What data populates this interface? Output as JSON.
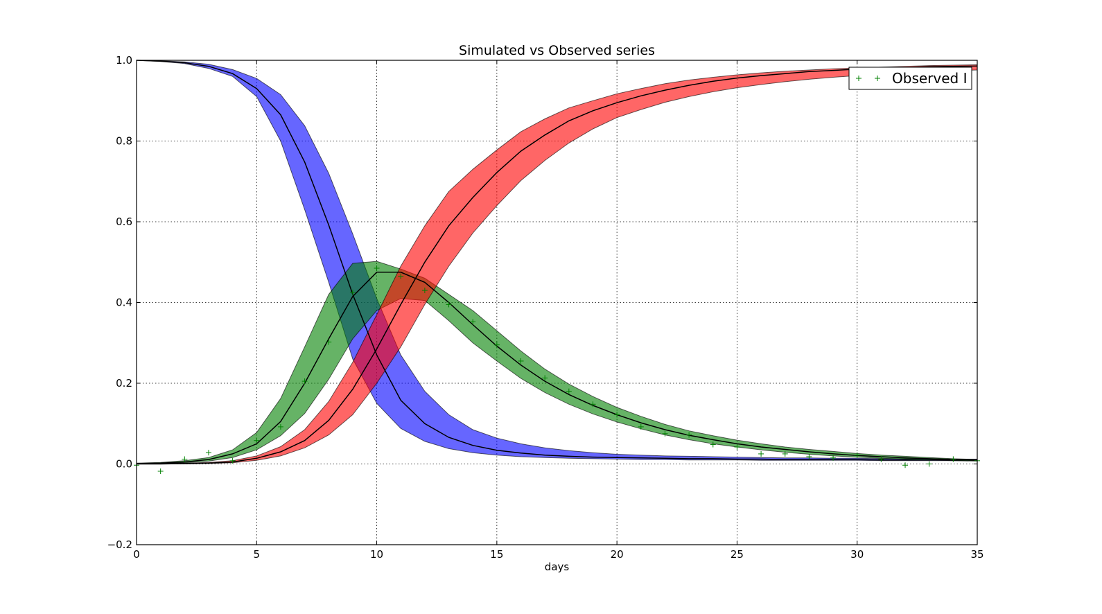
{
  "chart_data": {
    "type": "line",
    "title": "Simulated vs Observed series",
    "xlabel": "days",
    "ylabel": "",
    "xlim": [
      0,
      35
    ],
    "ylim": [
      -0.2,
      1.0
    ],
    "xticks": [
      0,
      5,
      10,
      15,
      20,
      25,
      30,
      35
    ],
    "yticks": [
      -0.2,
      0.0,
      0.2,
      0.4,
      0.6,
      0.8,
      1.0
    ],
    "xtick_labels": [
      "0",
      "5",
      "10",
      "15",
      "20",
      "25",
      "30",
      "35"
    ],
    "ytick_labels": [
      "−0.2",
      "0.0",
      "0.2",
      "0.4",
      "0.6",
      "0.8",
      "1.0"
    ],
    "grid": true,
    "legend_position": "top-right",
    "x": [
      0,
      1,
      2,
      3,
      4,
      5,
      6,
      7,
      8,
      9,
      10,
      11,
      12,
      13,
      14,
      15,
      16,
      17,
      18,
      19,
      20,
      21,
      22,
      23,
      24,
      25,
      26,
      27,
      28,
      29,
      30,
      31,
      32,
      33,
      34,
      35
    ],
    "bands": [
      {
        "color": "#0000ff",
        "mean": [
          1.0,
          0.998,
          0.994,
          0.985,
          0.967,
          0.93,
          0.865,
          0.748,
          0.592,
          0.42,
          0.27,
          0.158,
          0.1,
          0.066,
          0.046,
          0.034,
          0.027,
          0.022,
          0.019,
          0.017,
          0.016,
          0.015,
          0.014,
          0.013,
          0.013,
          0.012,
          0.012,
          0.011,
          0.011,
          0.011,
          0.011,
          0.01,
          0.01,
          0.01,
          0.01,
          0.01
        ],
        "lower": [
          1.0,
          0.997,
          0.992,
          0.98,
          0.96,
          0.91,
          0.8,
          0.63,
          0.45,
          0.26,
          0.15,
          0.088,
          0.056,
          0.038,
          0.028,
          0.022,
          0.018,
          0.016,
          0.014,
          0.013,
          0.012,
          0.011,
          0.011,
          0.01,
          0.01,
          0.01,
          0.009,
          0.009,
          0.009,
          0.009,
          0.009,
          0.008,
          0.008,
          0.008,
          0.008,
          0.008
        ],
        "upper": [
          1.0,
          0.999,
          0.996,
          0.99,
          0.977,
          0.955,
          0.915,
          0.838,
          0.72,
          0.57,
          0.41,
          0.27,
          0.18,
          0.122,
          0.085,
          0.064,
          0.05,
          0.04,
          0.033,
          0.028,
          0.024,
          0.022,
          0.02,
          0.019,
          0.018,
          0.017,
          0.016,
          0.015,
          0.015,
          0.014,
          0.014,
          0.013,
          0.013,
          0.013,
          0.012,
          0.012
        ]
      },
      {
        "color": "#008000",
        "mean": [
          0.001,
          0.002,
          0.005,
          0.011,
          0.025,
          0.05,
          0.105,
          0.2,
          0.31,
          0.415,
          0.475,
          0.475,
          0.45,
          0.4,
          0.345,
          0.292,
          0.245,
          0.205,
          0.172,
          0.145,
          0.122,
          0.102,
          0.085,
          0.071,
          0.06,
          0.05,
          0.042,
          0.036,
          0.03,
          0.025,
          0.021,
          0.018,
          0.015,
          0.013,
          0.011,
          0.009
        ],
        "lower": [
          0.0,
          0.001,
          0.003,
          0.007,
          0.016,
          0.035,
          0.07,
          0.125,
          0.21,
          0.31,
          0.38,
          0.41,
          0.405,
          0.355,
          0.3,
          0.255,
          0.212,
          0.177,
          0.148,
          0.124,
          0.104,
          0.087,
          0.072,
          0.06,
          0.05,
          0.042,
          0.035,
          0.029,
          0.024,
          0.02,
          0.017,
          0.014,
          0.012,
          0.01,
          0.008,
          0.007
        ],
        "upper": [
          0.002,
          0.004,
          0.008,
          0.016,
          0.035,
          0.078,
          0.162,
          0.29,
          0.42,
          0.497,
          0.502,
          0.483,
          0.46,
          0.42,
          0.38,
          0.33,
          0.28,
          0.235,
          0.198,
          0.167,
          0.14,
          0.118,
          0.098,
          0.082,
          0.07,
          0.059,
          0.05,
          0.042,
          0.036,
          0.031,
          0.026,
          0.022,
          0.019,
          0.016,
          0.013,
          0.011
        ]
      },
      {
        "color": "#ff0000",
        "mean": [
          0.0,
          0.0,
          0.001,
          0.002,
          0.005,
          0.014,
          0.03,
          0.058,
          0.108,
          0.185,
          0.285,
          0.395,
          0.5,
          0.59,
          0.66,
          0.722,
          0.775,
          0.815,
          0.85,
          0.875,
          0.895,
          0.912,
          0.926,
          0.938,
          0.948,
          0.956,
          0.962,
          0.967,
          0.972,
          0.975,
          0.978,
          0.98,
          0.982,
          0.984,
          0.985,
          0.986
        ],
        "lower": [
          0.0,
          0.0,
          0.0,
          0.001,
          0.003,
          0.009,
          0.02,
          0.04,
          0.072,
          0.122,
          0.2,
          0.29,
          0.395,
          0.49,
          0.572,
          0.64,
          0.702,
          0.752,
          0.795,
          0.83,
          0.858,
          0.878,
          0.896,
          0.91,
          0.922,
          0.932,
          0.94,
          0.947,
          0.953,
          0.958,
          0.962,
          0.966,
          0.969,
          0.972,
          0.974,
          0.976
        ],
        "upper": [
          0.0,
          0.001,
          0.002,
          0.004,
          0.008,
          0.02,
          0.043,
          0.085,
          0.155,
          0.252,
          0.37,
          0.49,
          0.59,
          0.675,
          0.73,
          0.778,
          0.823,
          0.855,
          0.882,
          0.9,
          0.917,
          0.93,
          0.942,
          0.951,
          0.958,
          0.964,
          0.969,
          0.973,
          0.976,
          0.979,
          0.981,
          0.983,
          0.985,
          0.987,
          0.988,
          0.989
        ]
      }
    ],
    "observed": {
      "name": "Observed I",
      "color": "#008000",
      "x": [
        0,
        1,
        2,
        3,
        4,
        5,
        6,
        7,
        8,
        9,
        10,
        11,
        12,
        13,
        14,
        15,
        16,
        17,
        18,
        19,
        20,
        21,
        22,
        23,
        24,
        25,
        26,
        27,
        28,
        29,
        30,
        31,
        32,
        33,
        34,
        35
      ],
      "y": [
        -0.003,
        -0.018,
        0.012,
        0.028,
        0.008,
        0.058,
        0.092,
        0.205,
        0.302,
        0.425,
        0.485,
        0.465,
        0.43,
        0.395,
        0.352,
        0.295,
        0.255,
        0.213,
        0.18,
        0.148,
        0.122,
        0.092,
        0.075,
        0.072,
        0.048,
        0.042,
        0.025,
        0.025,
        0.018,
        0.015,
        0.022,
        0.012,
        -0.003,
        0.0,
        0.012,
        0.008
      ]
    }
  }
}
